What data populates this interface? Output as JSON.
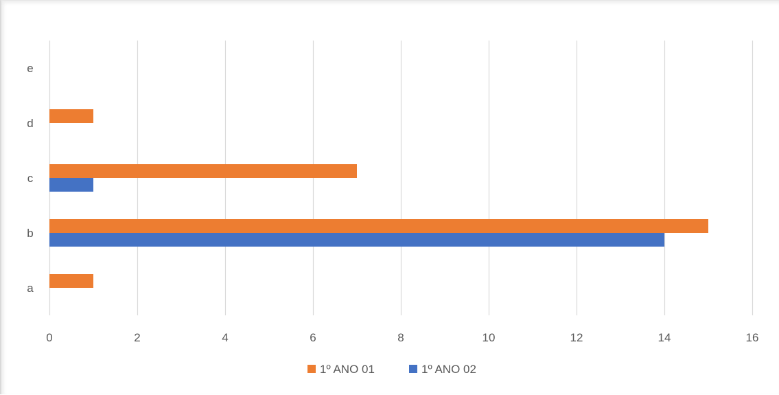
{
  "chart_data": {
    "type": "bar",
    "orientation": "horizontal",
    "categories": [
      "a",
      "b",
      "c",
      "d",
      "e"
    ],
    "series": [
      {
        "name": "1º ANO 02",
        "color": "#4472c4",
        "values": [
          0,
          14,
          1,
          0,
          0
        ]
      },
      {
        "name": "1º ANO 01",
        "color": "#ed7d31",
        "values": [
          1,
          15,
          7,
          1,
          0
        ]
      }
    ],
    "xlim": [
      0,
      16
    ],
    "x_ticks": [
      0,
      2,
      4,
      6,
      8,
      10,
      12,
      14,
      16
    ],
    "grid": true,
    "legend_position": "bottom",
    "legend_order": [
      "1º ANO 01",
      "1º ANO 02"
    ],
    "title": "",
    "xlabel": "",
    "ylabel": ""
  }
}
